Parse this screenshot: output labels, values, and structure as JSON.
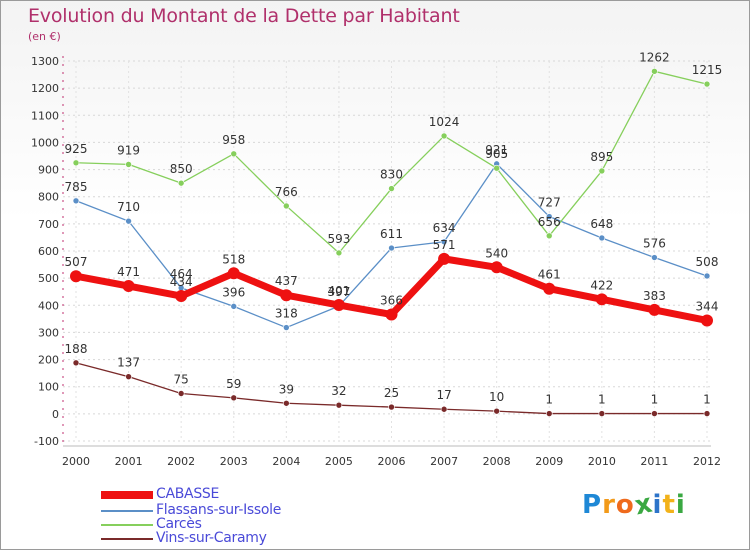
{
  "title": "Evolution du Montant de la Dette par Habitant",
  "unit": "(en €)",
  "logo": {
    "text": "Proxiti",
    "letters": [
      "P",
      "r",
      "o",
      "x",
      "i",
      "t",
      "i"
    ],
    "colors": [
      "#1e88d6",
      "#f29a1a",
      "#ef6a1c",
      "#3aa842",
      "#2d74c9",
      "#f2b21a",
      "#3aa842"
    ]
  },
  "chart_data": {
    "type": "line",
    "title": "Evolution du Montant de la Dette par Habitant",
    "ylabel": "(en €)",
    "xlabel": "",
    "x": [
      "2000",
      "2001",
      "2002",
      "2003",
      "2004",
      "2005",
      "2006",
      "2007",
      "2008",
      "2009",
      "2010",
      "2011",
      "2012"
    ],
    "ylim": [
      -100,
      1300
    ],
    "yticks": [
      "-100",
      "0",
      "100",
      "200",
      "300",
      "400",
      "500",
      "600",
      "700",
      "800",
      "900",
      "1000",
      "1100",
      "1200",
      "1300"
    ],
    "series": [
      {
        "name": "CABASSE",
        "color": "#ee1111",
        "values": [
          507,
          471,
          434,
          518,
          437,
          401,
          366,
          571,
          540,
          461,
          422,
          383,
          344
        ],
        "labels": [
          "507",
          "471",
          "434",
          "518",
          "437",
          "401",
          "366",
          "571",
          "540",
          "461",
          "422",
          "383",
          "344"
        ]
      },
      {
        "name": "Flassans-sur-Issole",
        "color": "#5b8fc7",
        "values": [
          785,
          710,
          464,
          396,
          318,
          397,
          611,
          634,
          921,
          727,
          648,
          576,
          508
        ],
        "labels": [
          "785",
          "710",
          "464",
          "396",
          "318",
          "397",
          "611",
          "634",
          "921",
          "727",
          "648",
          "576",
          "508"
        ]
      },
      {
        "name": "Carcès",
        "color": "#86cf5c",
        "values": [
          925,
          919,
          850,
          958,
          766,
          593,
          830,
          1024,
          905,
          656,
          895,
          1262,
          1215
        ],
        "labels": [
          "925",
          "919",
          "850",
          "958",
          "766",
          "593",
          "830",
          "1024",
          "905",
          "656",
          "895",
          "1262",
          "1215"
        ]
      },
      {
        "name": "Vins-sur-Caramy",
        "color": "#7a2a2a",
        "values": [
          188,
          137,
          75,
          59,
          39,
          32,
          25,
          17,
          10,
          1,
          1,
          1,
          1
        ],
        "labels": [
          "188",
          "137",
          "75",
          "59",
          "39",
          "32",
          "25",
          "17",
          "10",
          "1",
          "1",
          "1",
          "1"
        ]
      }
    ]
  }
}
